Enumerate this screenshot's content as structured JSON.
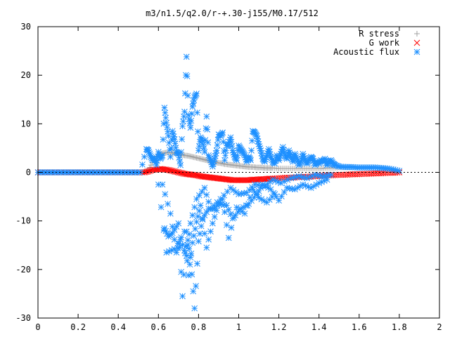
{
  "chart_data": {
    "type": "scatter",
    "title": "m3/n1.5/q2.0/r-+.30-j155/M0.17/512",
    "xlabel": "",
    "ylabel": "",
    "xlim": [
      0,
      2
    ],
    "ylim": [
      -30,
      30
    ],
    "xticks": [
      0,
      0.2,
      0.4,
      0.6,
      0.8,
      1,
      1.2,
      1.4,
      1.6,
      1.8,
      2
    ],
    "yticks": [
      -30,
      -20,
      -10,
      0,
      10,
      20,
      30
    ],
    "xtick_labels": [
      "0",
      "0.2",
      "0.4",
      "0.6",
      "0.8",
      "1",
      "1.2",
      "1.4",
      "1.6",
      "1.8",
      "2"
    ],
    "ytick_labels": [
      "-30",
      "-20",
      "-10",
      "0",
      "10",
      "20",
      "30"
    ],
    "grid": false,
    "legend_position": "top-right",
    "series": [
      {
        "name": "R stress",
        "marker": "plus",
        "color": "#a0a0a0",
        "x": [
          0,
          0.05,
          0.1,
          0.15,
          0.2,
          0.25,
          0.3,
          0.35,
          0.4,
          0.45,
          0.5,
          0.53,
          0.55,
          0.57,
          0.59,
          0.61,
          0.63,
          0.65,
          0.67,
          0.69,
          0.71,
          0.73,
          0.75,
          0.77,
          0.79,
          0.81,
          0.83,
          0.85,
          0.87,
          0.89,
          0.91,
          0.93,
          0.95,
          0.97,
          0.99,
          1.01,
          1.03,
          1.05,
          1.07,
          1.09,
          1.11,
          1.13,
          1.15,
          1.17,
          1.2,
          1.23,
          1.26,
          1.29,
          1.32,
          1.35,
          1.38,
          1.41,
          1.44,
          1.47,
          1.5,
          1.53,
          1.56,
          1.59,
          1.62,
          1.65,
          1.68,
          1.71,
          1.74,
          1.77,
          1.8
        ],
        "y": [
          0,
          0,
          0,
          0,
          0,
          0,
          0,
          0,
          0,
          0,
          0,
          0,
          0.5,
          2,
          3.2,
          3.8,
          4,
          4.1,
          4,
          3.9,
          3.7,
          3.5,
          3.4,
          3.2,
          3,
          2.8,
          2.6,
          2.4,
          2.2,
          2,
          1.9,
          1.7,
          1.6,
          1.5,
          1.4,
          1.3,
          1.2,
          1.1,
          1.1,
          1.0,
          1.0,
          0.9,
          0.9,
          0.9,
          0.8,
          0.8,
          0.8,
          0.8,
          0.8,
          0.8,
          0.8,
          0.8,
          0.9,
          0.9,
          1.0,
          1.0,
          1.0,
          1.0,
          1.0,
          1.0,
          1.0,
          0.9,
          0.8,
          0.6,
          0.3
        ]
      },
      {
        "name": "G work",
        "marker": "cross",
        "color": "#ff0000",
        "x": [
          0,
          0.05,
          0.1,
          0.15,
          0.2,
          0.25,
          0.3,
          0.35,
          0.4,
          0.45,
          0.5,
          0.53,
          0.55,
          0.57,
          0.59,
          0.61,
          0.63,
          0.65,
          0.67,
          0.69,
          0.71,
          0.73,
          0.75,
          0.77,
          0.79,
          0.81,
          0.83,
          0.85,
          0.87,
          0.89,
          0.91,
          0.93,
          0.95,
          0.97,
          0.99,
          1.01,
          1.03,
          1.05,
          1.07,
          1.09,
          1.11,
          1.13,
          1.15,
          1.17,
          1.2,
          1.23,
          1.26,
          1.29,
          1.32,
          1.35,
          1.38,
          1.41,
          1.44,
          1.47,
          1.5,
          1.53,
          1.56,
          1.59,
          1.62,
          1.65,
          1.68,
          1.71,
          1.74,
          1.77,
          1.8
        ],
        "y": [
          0,
          0,
          0,
          0,
          0,
          0,
          0,
          0,
          0,
          0,
          0,
          0,
          0.2,
          0.5,
          0.6,
          0.7,
          0.6,
          0.5,
          0.3,
          0.1,
          -0.1,
          -0.3,
          -0.4,
          -0.5,
          -0.6,
          -0.8,
          -0.9,
          -1.0,
          -1.1,
          -1.2,
          -1.3,
          -1.4,
          -1.5,
          -1.6,
          -1.6,
          -1.6,
          -1.6,
          -1.6,
          -1.5,
          -1.5,
          -1.4,
          -1.4,
          -1.3,
          -1.3,
          -1.2,
          -1.1,
          -1.1,
          -1.0,
          -0.9,
          -0.9,
          -0.8,
          -0.7,
          -0.6,
          -0.6,
          -0.5,
          -0.5,
          -0.4,
          -0.4,
          -0.3,
          -0.3,
          -0.2,
          -0.2,
          -0.1,
          -0.1,
          0
        ]
      },
      {
        "name": "Acoustic flux",
        "marker": "star",
        "color": "#1e90ff",
        "x": [
          0,
          0.03,
          0.06,
          0.09,
          0.12,
          0.15,
          0.18,
          0.21,
          0.24,
          0.27,
          0.3,
          0.33,
          0.36,
          0.39,
          0.42,
          0.45,
          0.48,
          0.51,
          0.54,
          0.55,
          0.56,
          0.57,
          0.58,
          0.59,
          0.6,
          0.61,
          0.62,
          0.63,
          0.64,
          0.65,
          0.66,
          0.67,
          0.68,
          0.69,
          0.7,
          0.71,
          0.72,
          0.73,
          0.74,
          0.75,
          0.76,
          0.77,
          0.78,
          0.79,
          0.8,
          0.81,
          0.82,
          0.83,
          0.84,
          0.85,
          0.86,
          0.87,
          0.88,
          0.89,
          0.9,
          0.91,
          0.92,
          0.93,
          0.94,
          0.95,
          0.96,
          0.97,
          0.98,
          0.99,
          1.0,
          1.01,
          1.02,
          1.03,
          1.04,
          1.05,
          1.06,
          1.07,
          1.08,
          1.09,
          1.1,
          1.11,
          1.12,
          1.13,
          1.14,
          1.15,
          1.16,
          1.17,
          1.18,
          1.19,
          1.2,
          1.21,
          1.22,
          1.23,
          1.24,
          1.25,
          1.26,
          1.27,
          1.28,
          1.29,
          1.3,
          1.31,
          1.32,
          1.33,
          1.34,
          1.35,
          1.36,
          1.37,
          1.38,
          1.39,
          1.4,
          1.41,
          1.42,
          1.43,
          1.44,
          1.45,
          1.46,
          1.47,
          1.48,
          1.5,
          1.53,
          1.56,
          1.59,
          1.62,
          1.65,
          1.68,
          1.71,
          1.74,
          1.77,
          1.8,
          0.63,
          0.65,
          0.67,
          0.7,
          0.72,
          0.74,
          0.76,
          0.78,
          0.8,
          0.82,
          0.85,
          0.88,
          0.92,
          0.95,
          0.99,
          1.03,
          1.07,
          1.1,
          1.14,
          1.18,
          0.6,
          0.64,
          0.68,
          0.73,
          0.75,
          0.77,
          0.79,
          0.81,
          0.84,
          0.87,
          0.9,
          0.94,
          0.97,
          1.01,
          1.05,
          1.09,
          1.12,
          1.16,
          1.2,
          1.24,
          1.28,
          1.32,
          1.36,
          1.4,
          1.44,
          0.62,
          0.66,
          0.69,
          0.71,
          0.74,
          0.76,
          0.79,
          0.83,
          0.86,
          0.91,
          0.96,
          1.0,
          1.04,
          1.08,
          1.13,
          1.17,
          1.21,
          1.26,
          1.3,
          1.34,
          1.38,
          1.42,
          1.46
        ],
        "y": [
          0,
          0,
          0,
          0,
          0,
          0,
          0,
          0,
          0,
          0,
          0,
          0,
          0,
          0,
          0,
          0,
          0,
          0,
          4.8,
          4.5,
          3.5,
          2.5,
          3,
          1.5,
          4.2,
          2.8,
          3.5,
          13.3,
          10.2,
          7.5,
          3.2,
          8.5,
          6.8,
          4.2,
          3.8,
          1.5,
          9.5,
          12.5,
          23.8,
          11.8,
          9.2,
          13.5,
          15.5,
          16.2,
          4.5,
          7.2,
          6.5,
          4.2,
          11.5,
          3.5,
          2.5,
          1.2,
          2.8,
          4.5,
          7.8,
          7.5,
          8.2,
          2.5,
          5.5,
          5.8,
          7.2,
          4.5,
          3.2,
          2.5,
          5.5,
          4.8,
          4.2,
          3.5,
          2.2,
          3.2,
          2.5,
          8.5,
          8.2,
          7.5,
          5.8,
          4.5,
          2.8,
          2.2,
          3.5,
          4.8,
          3.2,
          2.2,
          1.8,
          3.5,
          2.5,
          3.8,
          5.2,
          3.5,
          2.8,
          4.5,
          3.2,
          2.2,
          3.8,
          2.8,
          1.5,
          2.2,
          3.8,
          2.5,
          1.8,
          2.5,
          3.2,
          2.8,
          1.5,
          2.2,
          1.8,
          2.5,
          2.2,
          2.8,
          1.5,
          2.2,
          2.5,
          1.8,
          1.5,
          1.2,
          1.1,
          1.1,
          1.0,
          1.0,
          1.0,
          1.0,
          0.9,
          0.8,
          0.6,
          0.3,
          -11.5,
          -13.2,
          -12.5,
          -10.5,
          -25.5,
          -12.2,
          -17.5,
          -28,
          -14.2,
          -9.5,
          -7.5,
          -7.5,
          -5.5,
          -13.5,
          -7.2,
          -8.5,
          -3.5,
          -5.2,
          -6.2,
          -4.5,
          -2.5,
          -16.5,
          -15.8,
          -12.2,
          -21.2,
          -14.5,
          -10.2,
          -6.8,
          -15.5,
          -10.5,
          -6.5,
          -6.8,
          -9.5,
          -7.5,
          -6.5,
          -4.5,
          -2.5,
          -3.5,
          -5.8,
          -3.2,
          -3.5,
          -2.5,
          -3.2,
          -2.2,
          -1.5,
          -2.5,
          -8.5,
          -16.5,
          -13.8,
          -17.2,
          -10.5,
          -5.5,
          -3.2,
          -7.5,
          -5.5,
          -3.2,
          -4.5,
          -4.2,
          -2.5,
          -2.8,
          -1.5,
          -2.2,
          -1.2,
          -0.8,
          -1.2,
          -0.5,
          -0.8,
          -0.5
        ]
      }
    ]
  }
}
